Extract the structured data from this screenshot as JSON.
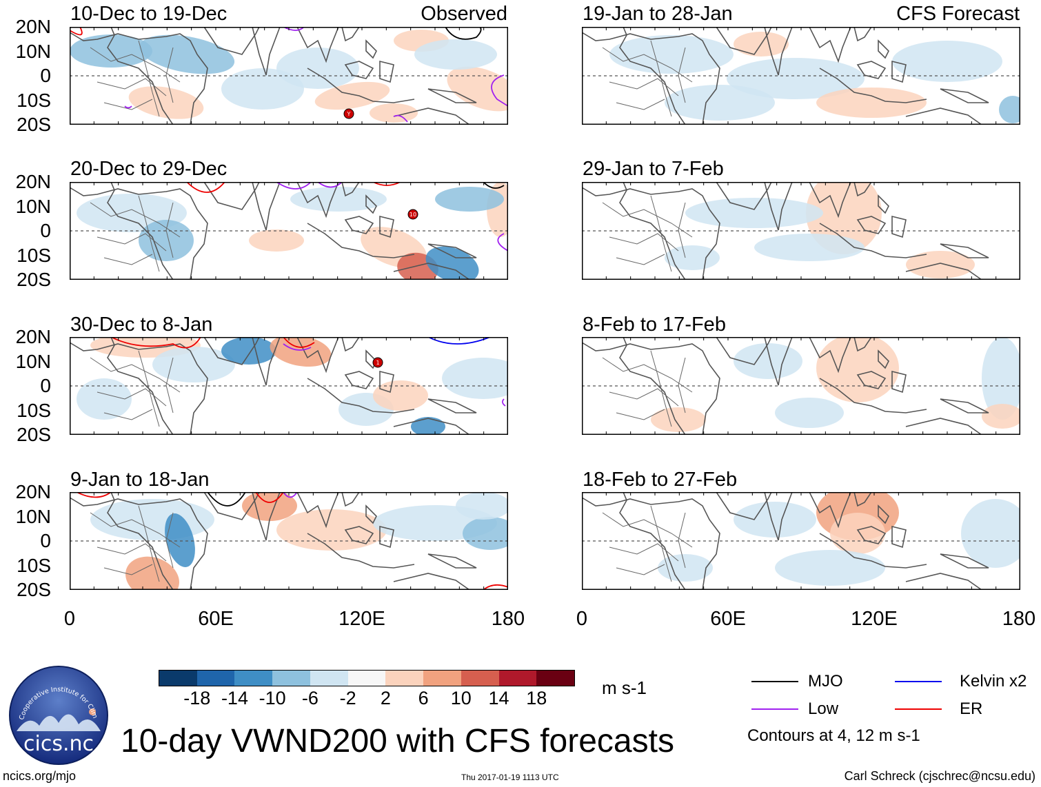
{
  "header": {
    "observed_label": "Observed",
    "forecast_label": "CFS Forecast"
  },
  "axes": {
    "y_labels": [
      "20N",
      "10N",
      "0",
      "10S",
      "20S"
    ],
    "x_labels": [
      "0",
      "60E",
      "120E",
      "180"
    ]
  },
  "panels": {
    "left": [
      {
        "title": "10-Dec to 19-Dec"
      },
      {
        "title": "20-Dec to 29-Dec"
      },
      {
        "title": "30-Dec to 8-Jan"
      },
      {
        "title": "9-Jan to 18-Jan"
      }
    ],
    "right": [
      {
        "title": "19-Jan to 28-Jan"
      },
      {
        "title": "29-Jan to 7-Feb"
      },
      {
        "title": "8-Feb to 17-Feb"
      },
      {
        "title": "18-Feb to 27-Feb"
      }
    ]
  },
  "colorbar": {
    "ticks": [
      "-18",
      "-14",
      "-10",
      "-6",
      "-2",
      "2",
      "6",
      "10",
      "14",
      "18"
    ],
    "colors": [
      "#0a3a6b",
      "#1f65ab",
      "#3f8ec5",
      "#8ec1de",
      "#d0e5f2",
      "#f7f7f7",
      "#fbd3bd",
      "#f1a27f",
      "#d65f4f",
      "#b0192b",
      "#6a0012"
    ],
    "units": "m s-1"
  },
  "legend": {
    "items": [
      {
        "label": "MJO",
        "color": "#000000"
      },
      {
        "label": "Kelvin x2",
        "color": "#0000ee"
      },
      {
        "label": "Low",
        "color": "#a020f0"
      },
      {
        "label": "ER",
        "color": "#ee0000"
      }
    ],
    "contours_note": "Contours at 4, 12 m s-1"
  },
  "footer": {
    "main_title": "10-day VWND200 with CFS forecasts",
    "url": "ncics.org/mjo",
    "timestamp": "Thu 2017-01-19 1113 UTC",
    "author": "Carl Schreck (cjschrec@ncsu.edu)",
    "logo_text": "cics.nc",
    "logo_arc_text": "Cooperative Institute for Climate and Satellites"
  },
  "storms": [
    {
      "panel": 0,
      "label": "Y"
    },
    {
      "panel": 1,
      "label": "10"
    },
    {
      "panel": 2,
      "label": "1"
    }
  ]
}
